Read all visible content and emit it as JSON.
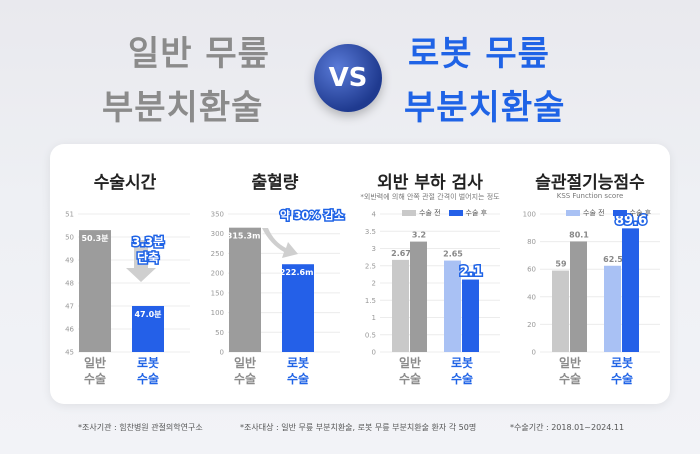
{
  "hero": {
    "left_line1": "일반 무릎",
    "left_line2": "부분치환술",
    "vs": "VS",
    "right_line1": "로봇 무릎",
    "right_line2": "부분치환술"
  },
  "colors": {
    "gray_bar": "#9c9c9c",
    "blue_bar": "#2460e8",
    "light_gray": "#c9c9c9",
    "light_blue": "#a9c1f4"
  },
  "panels": [
    {
      "title": "수술시간",
      "callout": "3.3분\n단축"
    },
    {
      "title": "출혈량",
      "callout": "약 30% 감소"
    },
    {
      "title": "외반 부하 검사",
      "subtitle": "*외반력에 의해 안쪽 관절 간격이 벌어지는 정도",
      "legend": [
        "수술 전",
        "수술 후"
      ]
    },
    {
      "title": "슬관절기능점수",
      "subtitle": "KSS Function score",
      "legend": [
        "수술 전",
        "수술 후"
      ]
    }
  ],
  "chart_data": [
    {
      "type": "bar",
      "title": "수술시간",
      "categories": [
        "일반 수술",
        "로봇 수술"
      ],
      "values": [
        50.3,
        47.0
      ],
      "value_labels": [
        "50.3분",
        "47.0분"
      ],
      "ylim": [
        45,
        51
      ],
      "yticks": [
        45,
        46,
        47,
        48,
        49,
        50,
        51
      ],
      "annotation": "3.3분 단축"
    },
    {
      "type": "bar",
      "title": "출혈량",
      "categories": [
        "일반 수술",
        "로봇 수술"
      ],
      "values": [
        315.3,
        222.6
      ],
      "value_labels": [
        "315.3ml",
        "222.6ml"
      ],
      "ylim": [
        0,
        350
      ],
      "yticks": [
        0,
        50,
        100,
        150,
        200,
        250,
        300,
        350
      ],
      "annotation": "약 30% 감소"
    },
    {
      "type": "bar",
      "title": "외반 부하 검사",
      "categories": [
        "일반 수술",
        "로봇 수술"
      ],
      "series": [
        {
          "name": "수술 전",
          "values": [
            2.67,
            2.65
          ]
        },
        {
          "name": "수술 후",
          "values": [
            3.2,
            2.1
          ]
        }
      ],
      "ylim": [
        0,
        4
      ],
      "yticks": [
        0,
        0.5,
        1,
        1.5,
        2,
        2.5,
        3,
        3.5,
        4
      ],
      "ytick_labels": [
        "0",
        "0.5",
        "1",
        "1.5",
        "2",
        "2.5",
        "3",
        "3.5",
        "4"
      ]
    },
    {
      "type": "bar",
      "title": "슬관절기능점수",
      "categories": [
        "일반 수술",
        "로봇 수술"
      ],
      "series": [
        {
          "name": "수술 전",
          "values": [
            59,
            62.5
          ]
        },
        {
          "name": "수술 후",
          "values": [
            80.1,
            89.6
          ]
        }
      ],
      "ylim": [
        0,
        100
      ],
      "yticks": [
        0,
        20,
        40,
        60,
        80,
        100
      ]
    }
  ],
  "x_labels": [
    [
      "일반",
      "수술"
    ],
    [
      "로봇",
      "수술"
    ]
  ],
  "footer": {
    "f1": "*조사기관 : 힘찬병원 관절의학연구소",
    "f2": "*조사대상 : 일반 무릎 부분치환술, 로봇 무릎 부분치환술 환자 각 50명",
    "f3": "*수술기간 : 2018.01~2024.11"
  }
}
